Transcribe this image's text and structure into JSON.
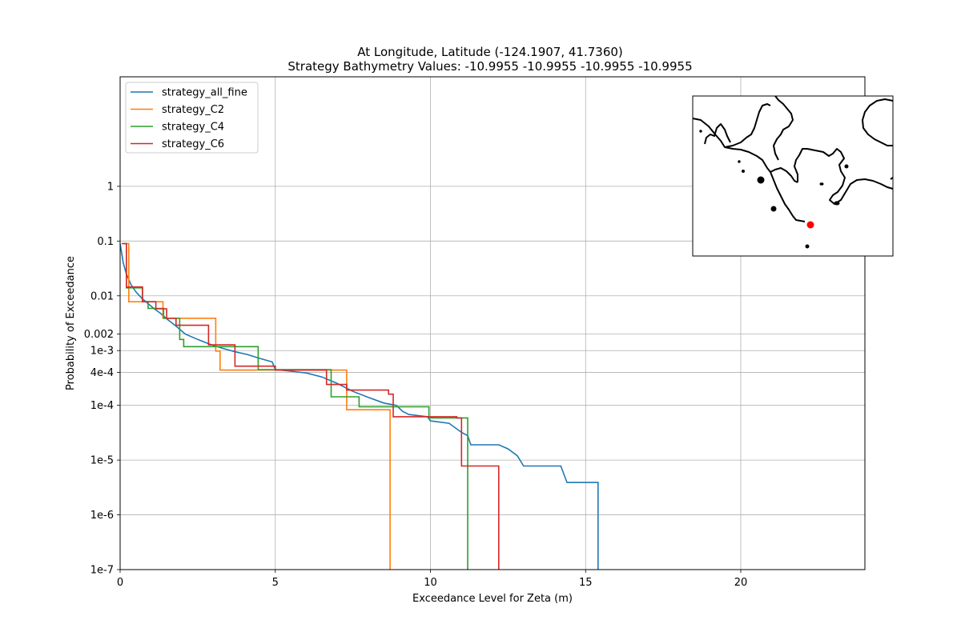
{
  "chart_data": {
    "type": "line",
    "title_line1": "At Longitude, Latitude (-124.1907,  41.7360)",
    "title_line2": "Strategy Bathymetry Values:  -10.9955  -10.9955  -10.9955  -10.9955",
    "xlabel": "Exceedance Level for Zeta (m)",
    "ylabel": "Probability of Exceedance",
    "xlim": [
      0,
      24
    ],
    "ylim": [
      1e-07,
      100
    ],
    "yscale": "log",
    "grid": true,
    "legend_location": "upper left",
    "x_ticks": [
      {
        "value": 0,
        "label": "0"
      },
      {
        "value": 5,
        "label": "5"
      },
      {
        "value": 10,
        "label": "10"
      },
      {
        "value": 15,
        "label": "15"
      },
      {
        "value": 20,
        "label": "20"
      }
    ],
    "y_ticks": [
      {
        "value": 1,
        "label": "1"
      },
      {
        "value": 0.1,
        "label": "0.1"
      },
      {
        "value": 0.01,
        "label": "0.01"
      },
      {
        "value": 0.002,
        "label": "0.002"
      },
      {
        "value": 0.001,
        "label": "1e-3"
      },
      {
        "value": 0.0004,
        "label": "4e-4"
      },
      {
        "value": 0.0001,
        "label": "1e-4"
      },
      {
        "value": 1e-05,
        "label": "1e-5"
      },
      {
        "value": 1e-06,
        "label": "1e-6"
      },
      {
        "value": 1e-07,
        "label": "1e-7"
      }
    ],
    "series": [
      {
        "name": "strategy_all_fine",
        "color": "#1f77b4",
        "points": [
          [
            0,
            0.09
          ],
          [
            0.1,
            0.04
          ],
          [
            0.2,
            0.025
          ],
          [
            0.35,
            0.016
          ],
          [
            0.5,
            0.012
          ],
          [
            0.7,
            0.009
          ],
          [
            0.9,
            0.0072
          ],
          [
            1.1,
            0.0058
          ],
          [
            1.3,
            0.0048
          ],
          [
            1.5,
            0.0038
          ],
          [
            1.8,
            0.0028
          ],
          [
            2.1,
            0.002
          ],
          [
            2.5,
            0.0016
          ],
          [
            2.9,
            0.0013
          ],
          [
            3.3,
            0.0011
          ],
          [
            3.7,
            0.00095
          ],
          [
            4.1,
            0.00085
          ],
          [
            4.5,
            0.00072
          ],
          [
            4.9,
            0.00062
          ],
          [
            5.0,
            0.00045
          ],
          [
            5.5,
            0.00042
          ],
          [
            6.0,
            0.00039
          ],
          [
            6.5,
            0.00033
          ],
          [
            7.0,
            0.00025
          ],
          [
            7.5,
            0.00018
          ],
          [
            8.0,
            0.00014
          ],
          [
            8.5,
            0.00011
          ],
          [
            8.9,
            0.0001
          ],
          [
            9.1,
            7.8e-05
          ],
          [
            9.3,
            6.8e-05
          ],
          [
            9.9,
            6.2e-05
          ],
          [
            10.0,
            5.2e-05
          ],
          [
            10.6,
            4.7e-05
          ],
          [
            11.0,
            3.2e-05
          ],
          [
            11.2,
            2.8e-05
          ],
          [
            11.3,
            1.9e-05
          ],
          [
            12.2,
            1.9e-05
          ],
          [
            12.5,
            1.6e-05
          ],
          [
            12.8,
            1.2e-05
          ],
          [
            13.0,
            7.8e-06
          ],
          [
            14.2,
            7.8e-06
          ],
          [
            14.4,
            3.9e-06
          ],
          [
            15.4,
            3.9e-06
          ],
          [
            15.4,
            1e-07
          ]
        ]
      },
      {
        "name": "strategy_C2",
        "color": "#ff7f0e",
        "points": [
          [
            0.1,
            0.09
          ],
          [
            0.28,
            0.09
          ],
          [
            0.28,
            0.0078
          ],
          [
            1.38,
            0.0078
          ],
          [
            1.38,
            0.0039
          ],
          [
            3.08,
            0.0039
          ],
          [
            3.08,
            0.00098
          ],
          [
            3.22,
            0.00098
          ],
          [
            3.22,
            0.00044
          ],
          [
            7.3,
            0.00044
          ],
          [
            7.3,
            8.3e-05
          ],
          [
            8.7,
            8.3e-05
          ],
          [
            8.7,
            1e-07
          ]
        ]
      },
      {
        "name": "strategy_C4",
        "color": "#2ca02c",
        "points": [
          [
            0.1,
            0.09
          ],
          [
            0.2,
            0.09
          ],
          [
            0.2,
            0.014
          ],
          [
            0.72,
            0.014
          ],
          [
            0.72,
            0.0078
          ],
          [
            0.9,
            0.0078
          ],
          [
            0.9,
            0.0059
          ],
          [
            1.4,
            0.0059
          ],
          [
            1.4,
            0.0039
          ],
          [
            1.92,
            0.0039
          ],
          [
            1.92,
            0.0016
          ],
          [
            2.05,
            0.0016
          ],
          [
            2.05,
            0.00118
          ],
          [
            4.45,
            0.00118
          ],
          [
            4.45,
            0.00045
          ],
          [
            6.8,
            0.00045
          ],
          [
            6.8,
            0.000143
          ],
          [
            7.7,
            0.000143
          ],
          [
            7.7,
            9.4e-05
          ],
          [
            9.95,
            9.4e-05
          ],
          [
            9.95,
            5.9e-05
          ],
          [
            11.2,
            5.9e-05
          ],
          [
            11.2,
            1e-07
          ]
        ]
      },
      {
        "name": "strategy_C6",
        "color": "#d62728",
        "points": [
          [
            0.05,
            0.09
          ],
          [
            0.2,
            0.09
          ],
          [
            0.2,
            0.0145
          ],
          [
            0.72,
            0.0145
          ],
          [
            0.72,
            0.0078
          ],
          [
            1.15,
            0.0078
          ],
          [
            1.15,
            0.0058
          ],
          [
            1.5,
            0.0058
          ],
          [
            1.5,
            0.0039
          ],
          [
            1.8,
            0.0039
          ],
          [
            1.8,
            0.0029
          ],
          [
            2.85,
            0.0029
          ],
          [
            2.85,
            0.00127
          ],
          [
            3.7,
            0.00127
          ],
          [
            3.7,
            0.0009
          ],
          [
            3.7,
            0.00052
          ],
          [
            5.0,
            0.00052
          ],
          [
            5.0,
            0.00044
          ],
          [
            6.65,
            0.00044
          ],
          [
            6.65,
            0.00024
          ],
          [
            7.3,
            0.00024
          ],
          [
            7.3,
            0.00019
          ],
          [
            8.65,
            0.00019
          ],
          [
            8.65,
            0.00016
          ],
          [
            8.8,
            0.00016
          ],
          [
            8.8,
            6.2e-05
          ],
          [
            10.85,
            6.2e-05
          ],
          [
            10.85,
            5.9e-05
          ],
          [
            11.0,
            5.9e-05
          ],
          [
            11.0,
            7.8e-06
          ],
          [
            12.2,
            7.8e-06
          ],
          [
            12.2,
            1e-07
          ]
        ]
      }
    ]
  },
  "inset_map": {
    "marker_color": "#ff0000",
    "coastline_color": "#000000"
  }
}
